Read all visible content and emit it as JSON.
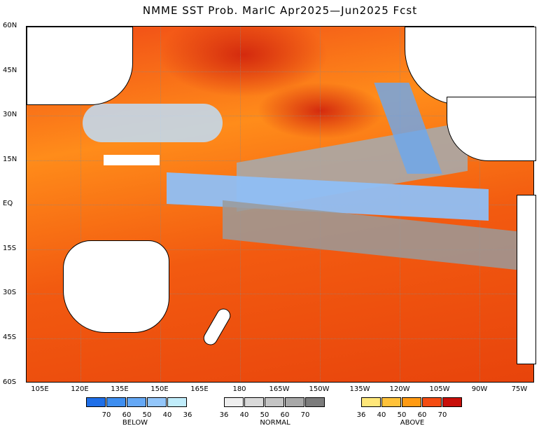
{
  "title": "NMME SST Prob. MarIC  Apr2025—Jun2025 Fcst",
  "lat_labels": [
    "60N",
    "45N",
    "30N",
    "15N",
    "EQ",
    "15S",
    "30S",
    "45S",
    "60S"
  ],
  "lon_labels": [
    "105E",
    "120E",
    "135E",
    "150E",
    "165E",
    "180",
    "165W",
    "150W",
    "135W",
    "120W",
    "105W",
    "90W",
    "75W"
  ],
  "legend": {
    "below": {
      "name": "BELOW",
      "ticks": [
        "70",
        "60",
        "50",
        "40",
        "36"
      ],
      "colors": [
        "#1f6fe8",
        "#3e8ef0",
        "#65a8f5",
        "#93c6fa",
        "#c0ecfa"
      ]
    },
    "normal": {
      "name": "NORMAL",
      "ticks": [
        "36",
        "40",
        "50",
        "60",
        "70"
      ],
      "colors": [
        "#eeeeee",
        "#d9d9d9",
        "#c4c4c4",
        "#a8a8a8",
        "#7c7c7c"
      ]
    },
    "above": {
      "name": "ABOVE",
      "ticks": [
        "36",
        "40",
        "50",
        "60",
        "70"
      ],
      "colors": [
        "#ffe77a",
        "#ffc23a",
        "#ff9a12",
        "#f44c12",
        "#c80f0a"
      ]
    }
  }
}
